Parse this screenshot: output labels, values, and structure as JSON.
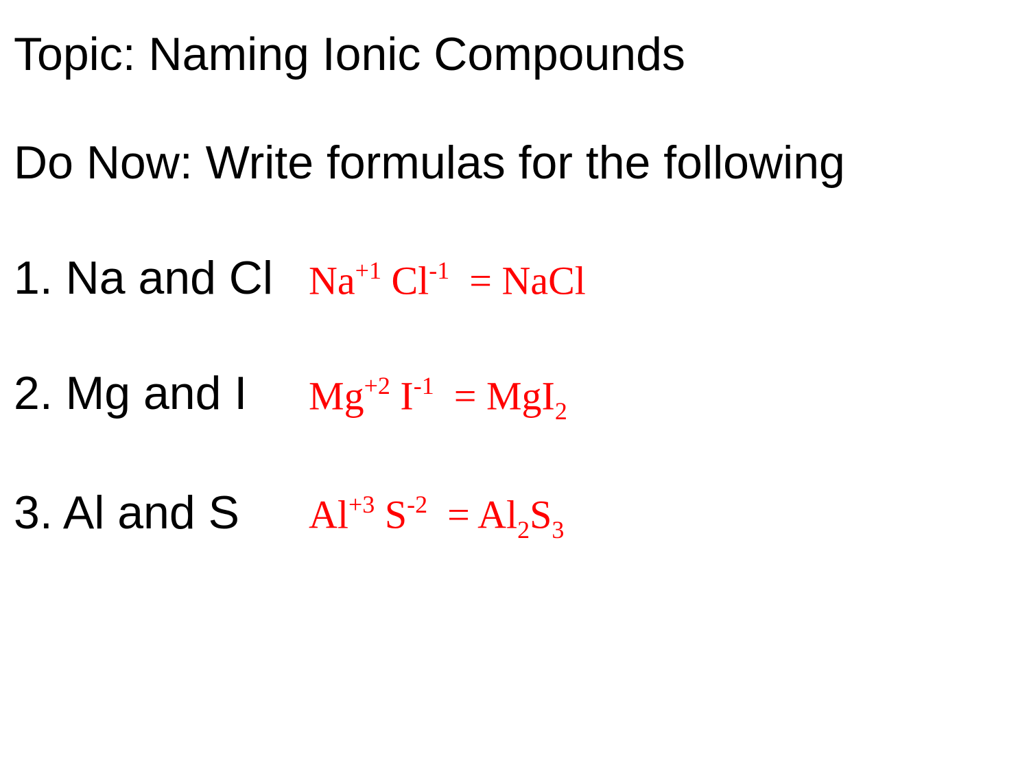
{
  "title": "Topic: Naming Ionic Compounds",
  "do_now": "Do Now: Write formulas for the following",
  "background_color": "#ffffff",
  "text_color": "#000000",
  "answer_color": "#ff0000",
  "title_fontsize": 68,
  "do_now_fontsize": 68,
  "problem_fontsize": 68,
  "answer_fontsize": 58,
  "answer_font_family": "Times New Roman",
  "problems": [
    {
      "number": "1.",
      "prompt": "Na   and Cl",
      "answer_parts": {
        "cation": "Na",
        "cation_charge": "+1",
        "anion": "Cl",
        "anion_charge": "-1",
        "result": "NaCl",
        "result_subs": []
      }
    },
    {
      "number": "2.",
      "prompt": "Mg and I",
      "answer_parts": {
        "cation": "Mg",
        "cation_charge": "+2",
        "anion": "I",
        "anion_charge": "-1",
        "result": "MgI",
        "result_subs": [
          "2"
        ]
      }
    },
    {
      "number": "3.",
      "prompt": "Al and S",
      "answer_parts": {
        "cation": "Al",
        "cation_charge": "+3",
        "anion": "S",
        "anion_charge": "-2",
        "result": "Al S",
        "result_subs": [
          "2",
          "3"
        ]
      }
    }
  ]
}
